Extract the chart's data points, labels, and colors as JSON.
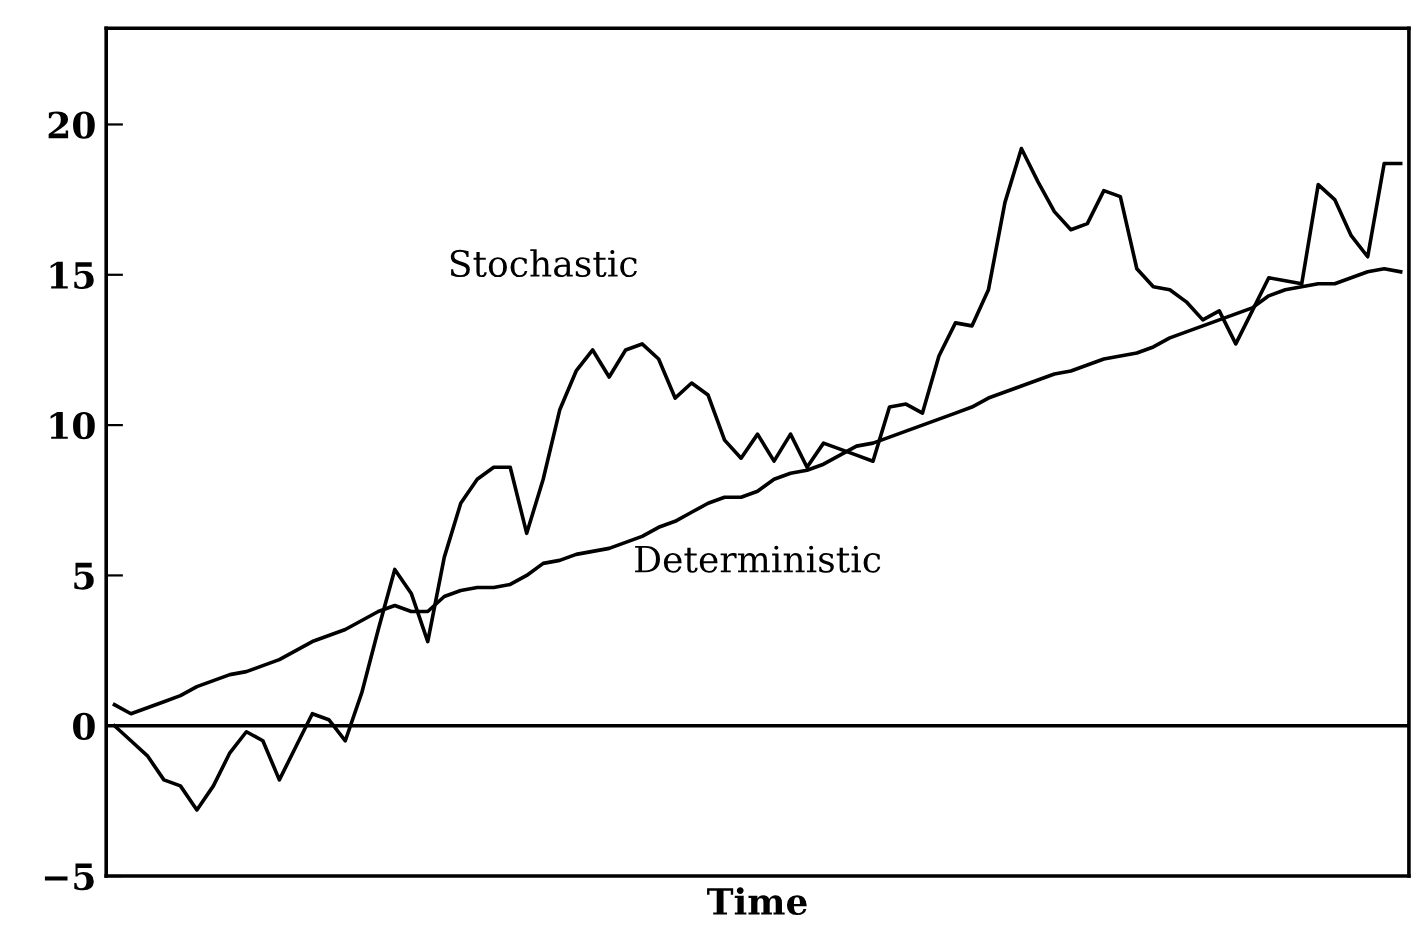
{
  "chart_data": {
    "type": "line",
    "xlabel": "Time",
    "categories": [
      null,
      null,
      null,
      null,
      null,
      null,
      null,
      null,
      null,
      null,
      null,
      null,
      null,
      null,
      null,
      null,
      null,
      null,
      null,
      null,
      null,
      null,
      null,
      null,
      null,
      null,
      null,
      null,
      null,
      null,
      null,
      null,
      null,
      null,
      null,
      null,
      null,
      null,
      null,
      null,
      null,
      null,
      null,
      null,
      null,
      null,
      null,
      null,
      null,
      null,
      null,
      null,
      null,
      null,
      null,
      null,
      null,
      null,
      null,
      null,
      null,
      null,
      null,
      null,
      null,
      null,
      null,
      null,
      null,
      null,
      null,
      null,
      null,
      null,
      null,
      null,
      null,
      null,
      null
    ],
    "ylim": [
      -5,
      23.2
    ],
    "yticks": [
      {
        "value": -5,
        "label": "−5"
      },
      0,
      5,
      10,
      15,
      20
    ],
    "tick_labels": "y",
    "grid": false,
    "legend": false,
    "marker": "none",
    "line_style": "solid",
    "ref_lines": [
      {
        "axis": "y",
        "value": 0,
        "color": "#000000"
      }
    ],
    "series": [
      {
        "name": "Stochastic",
        "color": "#000000",
        "values": [
          0,
          -0.5,
          -1.0,
          -1.8,
          -2.0,
          -2.8,
          -2.0,
          -0.9,
          -0.2,
          -0.5,
          -1.8,
          -0.7,
          0.4,
          0.2,
          -0.5,
          1.1,
          3.2,
          5.2,
          4.4,
          2.8,
          5.6,
          7.4,
          8.2,
          8.6,
          8.6,
          6.4,
          8.2,
          10.5,
          11.8,
          12.5,
          11.6,
          12.5,
          12.7,
          12.2,
          10.9,
          11.4,
          11.0,
          9.5,
          8.9,
          9.7,
          8.8,
          9.7,
          8.6,
          9.4,
          9.2,
          9.0,
          8.8,
          10.6,
          10.7,
          10.4,
          12.3,
          13.4,
          13.3,
          14.5,
          17.4,
          19.2,
          18.1,
          17.1,
          16.5,
          16.7,
          17.8,
          17.6,
          15.2,
          14.6,
          14.5,
          14.1,
          13.5,
          13.8,
          12.7,
          13.8,
          14.9,
          14.8,
          14.7,
          18.0,
          17.5,
          16.3,
          15.6,
          18.7,
          18.7
        ]
      },
      {
        "name": "Deterministic",
        "color": "#000000",
        "values": [
          0.7,
          0.4,
          0.6,
          0.8,
          1.0,
          1.3,
          1.5,
          1.7,
          1.8,
          2.0,
          2.2,
          2.5,
          2.8,
          3.0,
          3.2,
          3.5,
          3.8,
          4.0,
          3.8,
          3.8,
          4.3,
          4.5,
          4.6,
          4.6,
          4.7,
          5.0,
          5.4,
          5.5,
          5.7,
          5.8,
          5.9,
          6.1,
          6.3,
          6.6,
          6.8,
          7.1,
          7.4,
          7.6,
          7.6,
          7.8,
          8.2,
          8.4,
          8.5,
          8.7,
          9.0,
          9.3,
          9.4,
          9.6,
          9.8,
          10.0,
          10.2,
          10.4,
          10.6,
          10.9,
          11.1,
          11.3,
          11.5,
          11.7,
          11.8,
          12.0,
          12.2,
          12.3,
          12.4,
          12.6,
          12.9,
          13.1,
          13.3,
          13.5,
          13.7,
          13.9,
          14.3,
          14.5,
          14.6,
          14.7,
          14.7,
          14.9,
          15.1,
          15.2,
          15.1
        ]
      }
    ]
  }
}
